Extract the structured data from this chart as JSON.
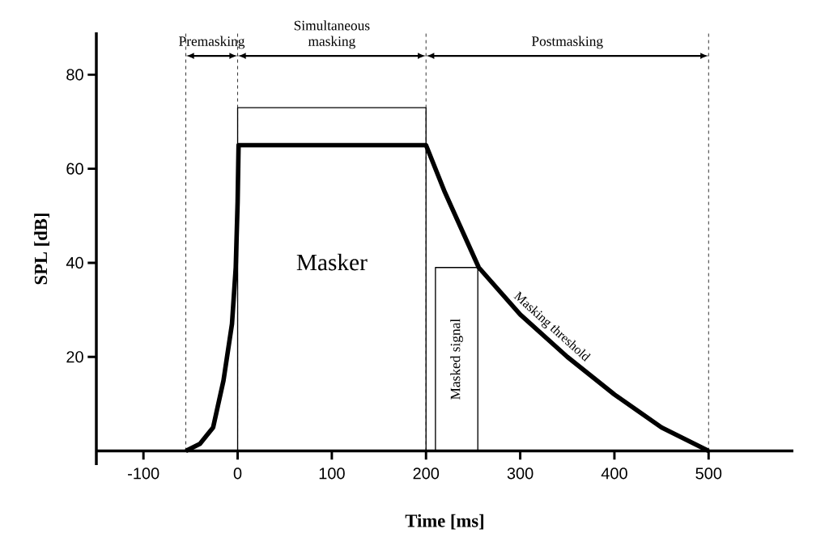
{
  "chart_data": {
    "type": "line",
    "xlabel": "Time [ms]",
    "ylabel": "SPL [dB]",
    "xlim": [
      -150,
      590
    ],
    "ylim": [
      -3,
      89
    ],
    "xticks": [
      -100,
      0,
      100,
      200,
      300,
      400,
      500
    ],
    "yticks": [
      20,
      40,
      60,
      80
    ],
    "series": [
      {
        "name": "Masker",
        "color": "#000000",
        "x": [
          0,
          0,
          200,
          200
        ],
        "values": [
          0,
          73,
          73,
          0
        ]
      },
      {
        "name": "Masked signal",
        "color": "#000000",
        "x": [
          210,
          210,
          255,
          255
        ],
        "values": [
          0,
          39,
          39,
          0
        ]
      },
      {
        "name": "Masking threshold",
        "color": "#000000",
        "x": [
          -55,
          -40,
          -26,
          -15,
          -6,
          -2,
          0,
          1,
          200,
          220,
          256,
          300,
          350,
          400,
          450,
          500
        ],
        "values": [
          0,
          1.5,
          5,
          15,
          27,
          39,
          53,
          65,
          65,
          55,
          39,
          29,
          20,
          12,
          5,
          0
        ]
      }
    ],
    "ref_lines": [
      {
        "axis": "x",
        "value": -55,
        "line_style": "dashed"
      },
      {
        "axis": "x",
        "value": 0,
        "line_style": "dashed"
      },
      {
        "axis": "x",
        "value": 200,
        "line_style": "dashed"
      },
      {
        "axis": "x",
        "value": 500,
        "line_style": "dashed"
      }
    ],
    "annotations": [
      "Premasking",
      "Simultaneous masking",
      "Postmasking"
    ]
  }
}
